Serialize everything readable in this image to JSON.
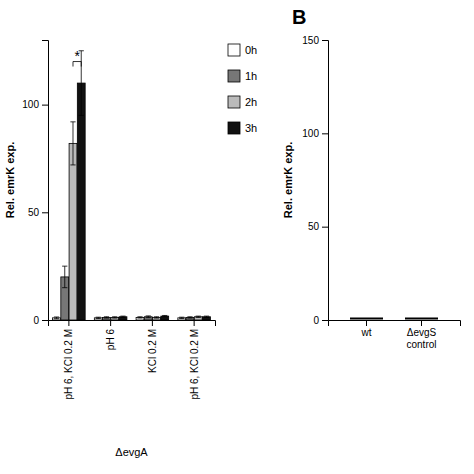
{
  "chart_data": [
    {
      "type": "bar",
      "ylabel": "Rel. emrK exp.",
      "xlabel": "ΔevgA",
      "categories": [
        "pH 6, KCl 0.2 M",
        "pH 6",
        "KCl 0.2 M",
        "pH 6, KCl 0.2 M"
      ],
      "series": [
        {
          "name": "0h",
          "color": "#ffffff",
          "values": [
            1.0,
            1.0,
            1.2,
            1.0
          ],
          "errors": [
            0.4,
            0.3,
            0.3,
            0.3
          ]
        },
        {
          "name": "1h",
          "color": "#777777",
          "values": [
            20.0,
            1.2,
            1.5,
            1.2
          ],
          "errors": [
            5.0,
            0.3,
            0.4,
            0.3
          ]
        },
        {
          "name": "2h",
          "color": "#bbbbbb",
          "values": [
            82.0,
            1.2,
            1.2,
            1.5
          ],
          "errors": [
            10.0,
            0.3,
            0.3,
            0.3
          ]
        },
        {
          "name": "3h",
          "color": "#111111",
          "values": [
            110.0,
            1.5,
            1.8,
            1.5
          ],
          "errors": [
            15.0,
            0.3,
            0.3,
            0.3
          ]
        }
      ],
      "ylim": [
        0,
        130
      ],
      "yticks": [
        0,
        50,
        100
      ],
      "legend": "right",
      "annotations": [
        {
          "text": "*",
          "category": 0,
          "series": [
            "2h",
            "3h"
          ],
          "y": 120
        }
      ]
    },
    {
      "type": "scatter",
      "marker": "line",
      "title": "B",
      "ylabel": "Rel. emrK exp.",
      "categories": [
        "wt",
        "ΔevgS\ncontrol"
      ],
      "values": [
        0.8,
        0.8
      ],
      "ylim": [
        0,
        150
      ],
      "yticks": [
        0,
        50,
        100,
        150
      ]
    }
  ]
}
